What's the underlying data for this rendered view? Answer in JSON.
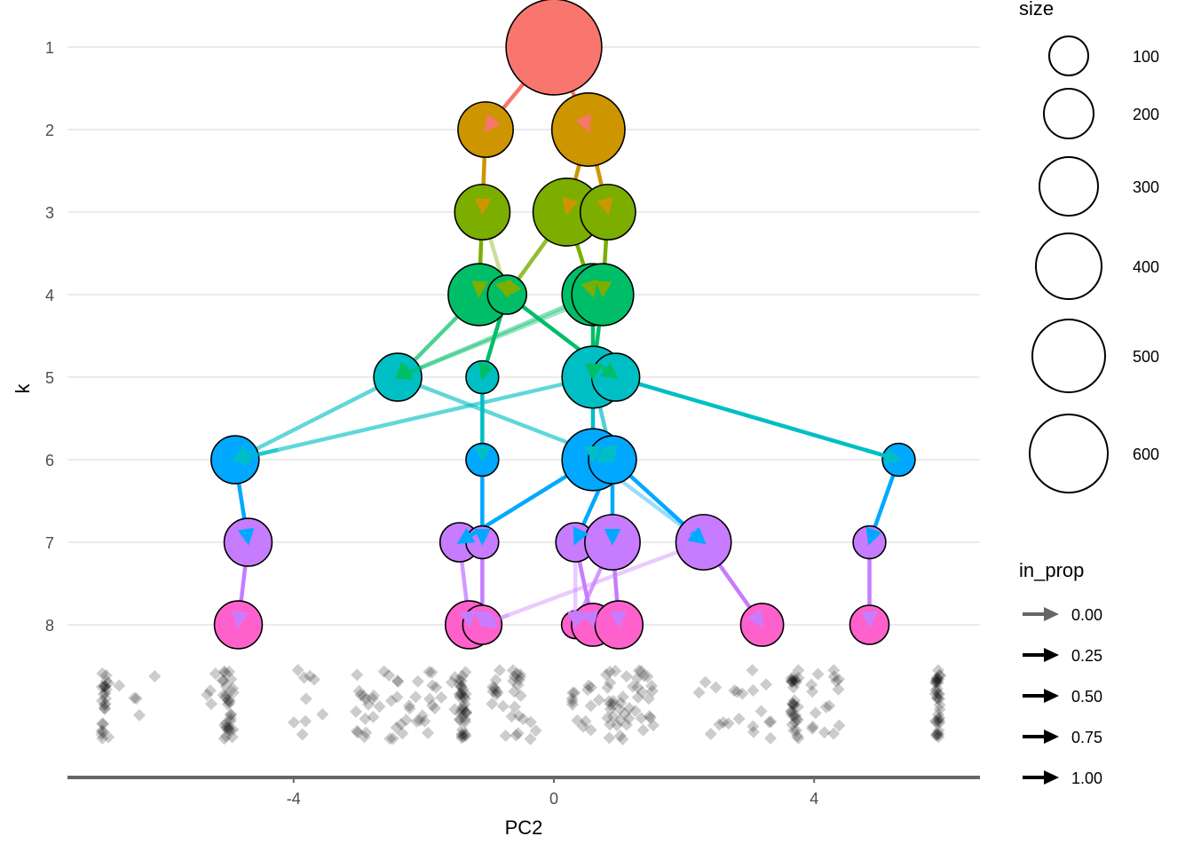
{
  "chart_data": {
    "type": "scatter",
    "title": "",
    "xlabel": "PC2",
    "ylabel": "k",
    "xlim": [
      -7.4,
      6.6
    ],
    "ylim": [
      1,
      8
    ],
    "x_ticks": [
      -4,
      0,
      4
    ],
    "x_tick_labels": [
      "-4",
      "0",
      "4"
    ],
    "y_ticks": [
      1,
      2,
      3,
      4,
      5,
      6,
      7,
      8
    ],
    "y_tick_labels": [
      "1",
      "2",
      "3",
      "4",
      "5",
      "6",
      "7",
      "8"
    ],
    "grid": "horizontal-major",
    "k_colors": {
      "1": "#F8766D",
      "2": "#CD9600",
      "3": "#7CAE00",
      "4": "#00BE67",
      "5": "#00BFC4",
      "6": "#00A9FF",
      "7": "#C77CFF",
      "8": "#FF61CC"
    },
    "nodes": [
      {
        "id": "k1_1",
        "k": 1,
        "pc2": 0.0,
        "size": 600
      },
      {
        "id": "k2_1",
        "k": 2,
        "pc2": -1.05,
        "size": 200
      },
      {
        "id": "k2_2",
        "k": 2,
        "pc2": 0.53,
        "size": 350
      },
      {
        "id": "k3_1",
        "k": 3,
        "pc2": -1.1,
        "size": 200
      },
      {
        "id": "k3_2",
        "k": 3,
        "pc2": 0.2,
        "size": 300
      },
      {
        "id": "k3_3",
        "k": 3,
        "pc2": 0.83,
        "size": 200
      },
      {
        "id": "k4_1",
        "k": 4,
        "pc2": -1.15,
        "size": 250
      },
      {
        "id": "k4_2",
        "k": 4,
        "pc2": -0.72,
        "size": 100
      },
      {
        "id": "k4_3",
        "k": 4,
        "pc2": 0.6,
        "size": 250
      },
      {
        "id": "k4_4",
        "k": 4,
        "pc2": 0.75,
        "size": 250
      },
      {
        "id": "k5_1",
        "k": 5,
        "pc2": -2.4,
        "size": 150
      },
      {
        "id": "k5_2",
        "k": 5,
        "pc2": -1.1,
        "size": 70
      },
      {
        "id": "k5_3",
        "k": 5,
        "pc2": 0.6,
        "size": 250
      },
      {
        "id": "k5_4",
        "k": 5,
        "pc2": 0.95,
        "size": 150
      },
      {
        "id": "k6_1",
        "k": 6,
        "pc2": -4.9,
        "size": 150
      },
      {
        "id": "k6_2",
        "k": 6,
        "pc2": -1.1,
        "size": 70
      },
      {
        "id": "k6_3",
        "k": 6,
        "pc2": 0.6,
        "size": 250
      },
      {
        "id": "k6_4",
        "k": 6,
        "pc2": 0.9,
        "size": 150
      },
      {
        "id": "k6_5",
        "k": 6,
        "pc2": 5.3,
        "size": 70
      },
      {
        "id": "k7_1",
        "k": 7,
        "pc2": -4.7,
        "size": 150
      },
      {
        "id": "k7_2",
        "k": 7,
        "pc2": -1.45,
        "size": 100
      },
      {
        "id": "k7_3",
        "k": 7,
        "pc2": -1.1,
        "size": 70
      },
      {
        "id": "k7_4",
        "k": 7,
        "pc2": 0.33,
        "size": 100
      },
      {
        "id": "k7_5",
        "k": 7,
        "pc2": 0.9,
        "size": 200
      },
      {
        "id": "k7_6",
        "k": 7,
        "pc2": 2.3,
        "size": 200
      },
      {
        "id": "k7_7",
        "k": 7,
        "pc2": 4.85,
        "size": 70
      },
      {
        "id": "k8_1",
        "k": 8,
        "pc2": -4.85,
        "size": 150
      },
      {
        "id": "k8_2",
        "k": 8,
        "pc2": -1.3,
        "size": 150
      },
      {
        "id": "k8_3",
        "k": 8,
        "pc2": -1.1,
        "size": 100
      },
      {
        "id": "k8_4",
        "k": 8,
        "pc2": 0.33,
        "size": 50
      },
      {
        "id": "k8_5",
        "k": 8,
        "pc2": 0.6,
        "size": 120
      },
      {
        "id": "k8_6",
        "k": 8,
        "pc2": 1.0,
        "size": 150
      },
      {
        "id": "k8_7",
        "k": 8,
        "pc2": 3.2,
        "size": 120
      },
      {
        "id": "k8_8",
        "k": 8,
        "pc2": 4.85,
        "size": 100
      }
    ],
    "edges": [
      {
        "from": "k1_1",
        "to": "k2_1",
        "in_prop": 1.0
      },
      {
        "from": "k1_1",
        "to": "k2_2",
        "in_prop": 1.0
      },
      {
        "from": "k2_1",
        "to": "k3_1",
        "in_prop": 1.0
      },
      {
        "from": "k2_2",
        "to": "k3_2",
        "in_prop": 1.0
      },
      {
        "from": "k2_2",
        "to": "k3_3",
        "in_prop": 1.0
      },
      {
        "from": "k3_1",
        "to": "k4_1",
        "in_prop": 1.0
      },
      {
        "from": "k3_1",
        "to": "k4_2",
        "in_prop": 0.2
      },
      {
        "from": "k3_2",
        "to": "k4_2",
        "in_prop": 0.75
      },
      {
        "from": "k3_2",
        "to": "k4_3",
        "in_prop": 1.0
      },
      {
        "from": "k3_3",
        "to": "k4_4",
        "in_prop": 1.0
      },
      {
        "from": "k4_1",
        "to": "k5_1",
        "in_prop": 0.6
      },
      {
        "from": "k4_3",
        "to": "k5_1",
        "in_prop": 0.3
      },
      {
        "from": "k4_4",
        "to": "k5_1",
        "in_prop": 0.2
      },
      {
        "from": "k4_2",
        "to": "k5_2",
        "in_prop": 1.0
      },
      {
        "from": "k4_3",
        "to": "k5_3",
        "in_prop": 1.0
      },
      {
        "from": "k4_4",
        "to": "k5_3",
        "in_prop": 1.0
      },
      {
        "from": "k4_2",
        "to": "k5_4",
        "in_prop": 1.0
      },
      {
        "from": "k5_1",
        "to": "k6_1",
        "in_prop": 0.5
      },
      {
        "from": "k5_3",
        "to": "k6_1",
        "in_prop": 0.5
      },
      {
        "from": "k5_2",
        "to": "k6_2",
        "in_prop": 1.0
      },
      {
        "from": "k5_3",
        "to": "k6_3",
        "in_prop": 1.0
      },
      {
        "from": "k5_1",
        "to": "k6_4",
        "in_prop": 0.5
      },
      {
        "from": "k5_3",
        "to": "k6_4",
        "in_prop": 0.6
      },
      {
        "from": "k5_4",
        "to": "k6_5",
        "in_prop": 1.0
      },
      {
        "from": "k6_1",
        "to": "k7_1",
        "in_prop": 1.0
      },
      {
        "from": "k6_3",
        "to": "k7_2",
        "in_prop": 1.0
      },
      {
        "from": "k6_2",
        "to": "k7_3",
        "in_prop": 1.0
      },
      {
        "from": "k6_4",
        "to": "k7_4",
        "in_prop": 1.0
      },
      {
        "from": "k6_4",
        "to": "k7_5",
        "in_prop": 1.0
      },
      {
        "from": "k6_4",
        "to": "k7_6",
        "in_prop": 1.0
      },
      {
        "from": "k6_3",
        "to": "k7_6",
        "in_prop": 0.2
      },
      {
        "from": "k6_5",
        "to": "k7_7",
        "in_prop": 1.0
      },
      {
        "from": "k7_1",
        "to": "k8_1",
        "in_prop": 1.0
      },
      {
        "from": "k7_2",
        "to": "k8_2",
        "in_prop": 0.7
      },
      {
        "from": "k7_3",
        "to": "k8_3",
        "in_prop": 1.0
      },
      {
        "from": "k7_6",
        "to": "k8_3",
        "in_prop": 0.2
      },
      {
        "from": "k7_4",
        "to": "k8_4",
        "in_prop": 0.2
      },
      {
        "from": "k7_5",
        "to": "k8_4",
        "in_prop": 0.7
      },
      {
        "from": "k7_4",
        "to": "k8_5",
        "in_prop": 1.0
      },
      {
        "from": "k7_5",
        "to": "k8_6",
        "in_prop": 1.0
      },
      {
        "from": "k7_6",
        "to": "k8_7",
        "in_prop": 1.0
      },
      {
        "from": "k7_7",
        "to": "k8_8",
        "in_prop": 1.0
      }
    ],
    "rug_clusters": [
      {
        "center": -6.9,
        "spread": 0.06,
        "count": 24
      },
      {
        "center": -6.5,
        "spread": 0.25,
        "count": 3
      },
      {
        "center": -6.1,
        "spread": 0.35,
        "count": 2
      },
      {
        "center": -5.0,
        "spread": 0.08,
        "count": 30
      },
      {
        "center": -5.2,
        "spread": 0.15,
        "count": 5
      },
      {
        "center": -3.8,
        "spread": 0.2,
        "count": 8
      },
      {
        "center": -3.6,
        "spread": 0.1,
        "count": 1
      },
      {
        "center": -2.9,
        "spread": 0.15,
        "count": 14
      },
      {
        "center": -2.5,
        "spread": 0.3,
        "count": 16
      },
      {
        "center": -1.8,
        "spread": 0.35,
        "count": 18
      },
      {
        "center": -1.4,
        "spread": 0.06,
        "count": 34
      },
      {
        "center": -0.6,
        "spread": 0.35,
        "count": 30
      },
      {
        "center": 0.6,
        "spread": 0.4,
        "count": 18
      },
      {
        "center": 1.2,
        "spread": 0.35,
        "count": 40
      },
      {
        "center": 2.6,
        "spread": 0.5,
        "count": 10
      },
      {
        "center": 3.0,
        "spread": 0.5,
        "count": 10
      },
      {
        "center": 3.7,
        "spread": 0.06,
        "count": 30
      },
      {
        "center": 4.2,
        "spread": 0.3,
        "count": 16
      },
      {
        "center": 5.9,
        "spread": 0.04,
        "count": 34
      }
    ],
    "legend": {
      "placement": "right",
      "size": {
        "title": "size",
        "values": [
          100,
          200,
          300,
          400,
          500,
          600
        ],
        "labels": [
          "100",
          "200",
          "300",
          "400",
          "500",
          "600"
        ]
      },
      "in_prop": {
        "title": "in_prop",
        "values": [
          0.0,
          0.25,
          0.5,
          0.75,
          1.0
        ],
        "labels": [
          "0.00",
          "0.25",
          "0.50",
          "0.75",
          "1.00"
        ]
      }
    }
  }
}
